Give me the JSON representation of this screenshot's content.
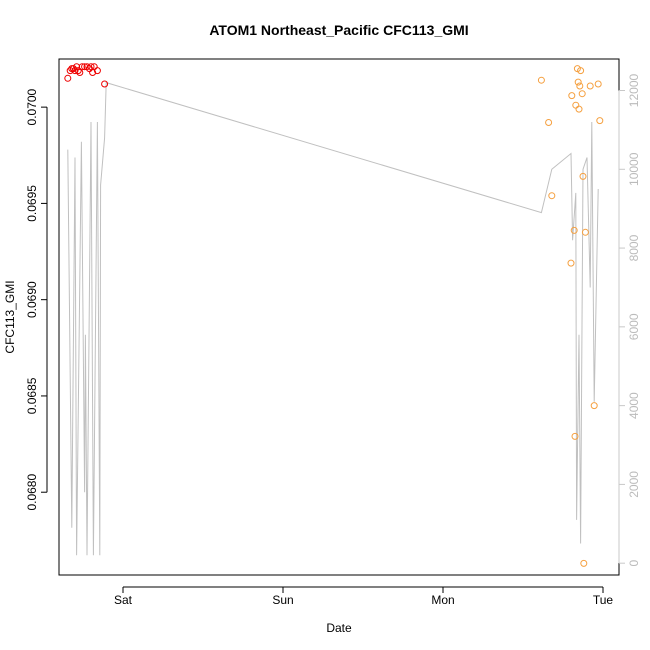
{
  "chart_data": {
    "type": "scatter",
    "title": "ATOM1 Northeast_Pacific CFC113_GMI",
    "xlabel": "Date",
    "ylabel": "CFC113_GMI",
    "x_units": "days (Fri 00:00 = 0)",
    "xlim": [
      0.6,
      4.1
    ],
    "ylim": [
      0.06757,
      0.07025
    ],
    "y2lim": [
      -300,
      12800
    ],
    "x_ticks": [
      {
        "value": 1.0,
        "label": "Sat"
      },
      {
        "value": 2.0,
        "label": "Sun"
      },
      {
        "value": 3.0,
        "label": "Mon"
      },
      {
        "value": 4.0,
        "label": "Tue"
      }
    ],
    "y_ticks": [
      {
        "value": 0.068,
        "label": "0.0680"
      },
      {
        "value": 0.0685,
        "label": "0.0685"
      },
      {
        "value": 0.069,
        "label": "0.0690"
      },
      {
        "value": 0.0695,
        "label": "0.0695"
      },
      {
        "value": 0.07,
        "label": "0.0700"
      }
    ],
    "y2_ticks": [
      {
        "value": 0,
        "label": "0"
      },
      {
        "value": 2000,
        "label": "2000"
      },
      {
        "value": 4000,
        "label": "4000"
      },
      {
        "value": 6000,
        "label": "6000"
      },
      {
        "value": 8000,
        "label": "8000"
      },
      {
        "value": 10000,
        "label": "10000"
      },
      {
        "value": 12000,
        "label": "12000"
      }
    ],
    "series": [
      {
        "color": "#ee0000",
        "points": [
          [
            0.655,
            0.07015
          ],
          [
            0.67,
            0.07019
          ],
          [
            0.68,
            0.0702
          ],
          [
            0.69,
            0.0702
          ],
          [
            0.7,
            0.07019
          ],
          [
            0.71,
            0.07021
          ],
          [
            0.72,
            0.07019
          ],
          [
            0.73,
            0.07018
          ],
          [
            0.745,
            0.07021
          ],
          [
            0.76,
            0.07021
          ],
          [
            0.775,
            0.07021
          ],
          [
            0.79,
            0.0702
          ],
          [
            0.8,
            0.07021
          ],
          [
            0.81,
            0.07018
          ],
          [
            0.82,
            0.07021
          ],
          [
            0.84,
            0.07019
          ],
          [
            0.885,
            0.07012
          ]
        ]
      },
      {
        "color": "#f5a040",
        "points": [
          [
            3.615,
            0.07014
          ],
          [
            3.66,
            0.06992
          ],
          [
            3.68,
            0.06954
          ],
          [
            3.8,
            0.06919
          ],
          [
            3.805,
            0.07006
          ],
          [
            3.82,
            0.06936
          ],
          [
            3.825,
            0.06829
          ],
          [
            3.83,
            0.07001
          ],
          [
            3.84,
            0.0702
          ],
          [
            3.845,
            0.07013
          ],
          [
            3.85,
            0.06999
          ],
          [
            3.855,
            0.07011
          ],
          [
            3.86,
            0.07019
          ],
          [
            3.87,
            0.07007
          ],
          [
            3.875,
            0.06964
          ],
          [
            3.88,
            0.06763
          ],
          [
            3.89,
            0.06935
          ],
          [
            3.92,
            0.07011
          ],
          [
            3.945,
            0.06845
          ],
          [
            3.97,
            0.07012
          ],
          [
            3.98,
            0.06993
          ]
        ]
      }
    ],
    "line_series": {
      "color": "#c0c0c0",
      "axis": "right",
      "points": [
        [
          0.655,
          10500
        ],
        [
          0.68,
          900
        ],
        [
          0.7,
          10300
        ],
        [
          0.71,
          200
        ],
        [
          0.74,
          10700
        ],
        [
          0.76,
          1800
        ],
        [
          0.765,
          5800
        ],
        [
          0.775,
          200
        ],
        [
          0.8,
          11200
        ],
        [
          0.815,
          200
        ],
        [
          0.84,
          11200
        ],
        [
          0.855,
          200
        ],
        [
          0.86,
          9600
        ],
        [
          0.885,
          10800
        ],
        [
          0.895,
          12200
        ],
        [
          3.615,
          8900
        ],
        [
          3.68,
          10000
        ],
        [
          3.8,
          10400
        ],
        [
          3.81,
          8200
        ],
        [
          3.83,
          9400
        ],
        [
          3.835,
          1100
        ],
        [
          3.85,
          5800
        ],
        [
          3.86,
          500
        ],
        [
          3.875,
          10000
        ],
        [
          3.9,
          10300
        ],
        [
          3.92,
          7000
        ],
        [
          3.93,
          11200
        ],
        [
          3.945,
          4100
        ],
        [
          3.97,
          9500
        ]
      ]
    },
    "grid": false,
    "legend": "none"
  }
}
